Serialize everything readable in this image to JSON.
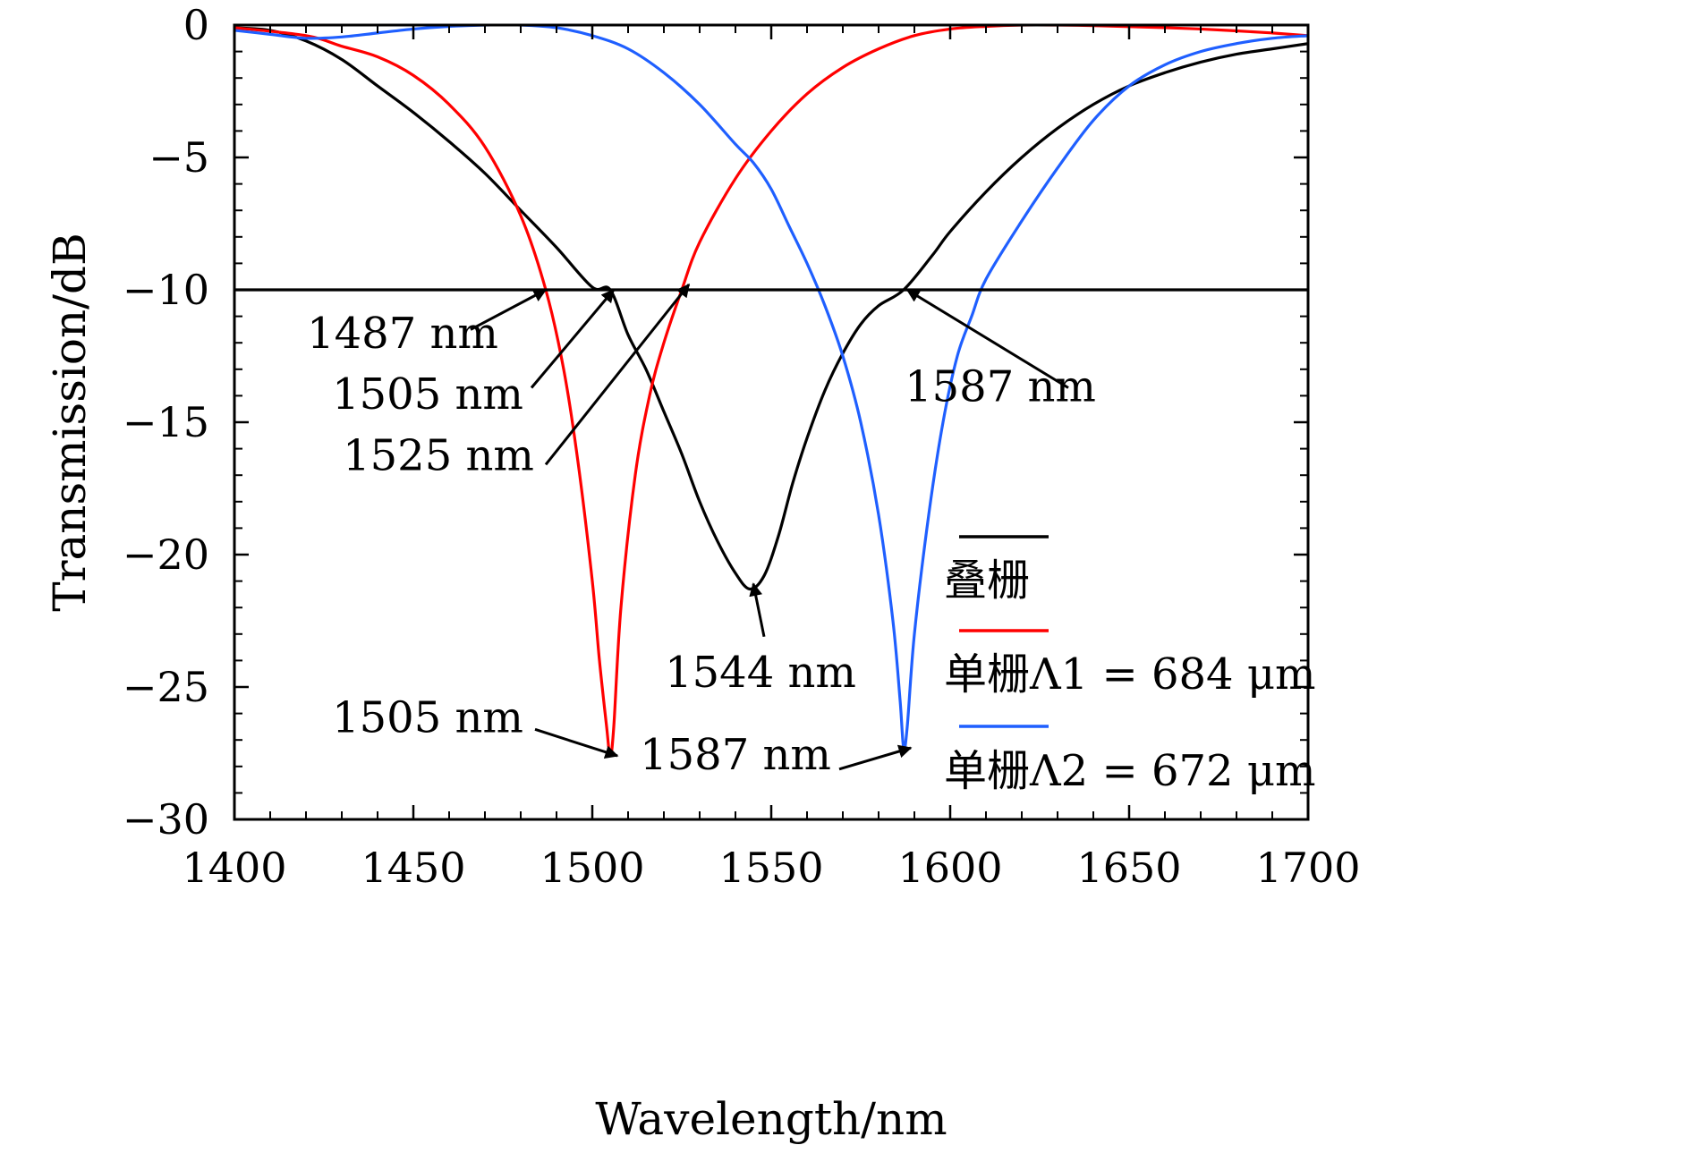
{
  "chart_data": {
    "type": "line",
    "xlabel": "Wavelength/nm",
    "ylabel": "Transmission/dB",
    "xlim": [
      1400,
      1700
    ],
    "ylim": [
      -30,
      0
    ],
    "xticks": [
      1400,
      1450,
      1500,
      1550,
      1600,
      1650,
      1700
    ],
    "yticks": [
      0,
      -5,
      -10,
      -15,
      -20,
      -25,
      -30
    ],
    "xtick_labels": [
      "1400",
      "1450",
      "1500",
      "1550",
      "1600",
      "1650",
      "1700"
    ],
    "ytick_labels": [
      "0",
      "−5",
      "−10",
      "−15",
      "−20",
      "−25",
      "−30"
    ],
    "grid": false,
    "legend_position": "bottom-right",
    "reference_line": {
      "y": -10
    },
    "series": [
      {
        "name": "叠栅",
        "color": "#000000",
        "x": [
          1400,
          1410,
          1420,
          1430,
          1440,
          1450,
          1460,
          1470,
          1480,
          1490,
          1500,
          1505,
          1510,
          1515,
          1520,
          1525,
          1530,
          1535,
          1540,
          1544,
          1548,
          1552,
          1556,
          1560,
          1565,
          1570,
          1575,
          1580,
          1587,
          1595,
          1600,
          1610,
          1620,
          1630,
          1640,
          1650,
          1660,
          1670,
          1680,
          1690,
          1700
        ],
        "y": [
          -0.1,
          -0.2,
          -0.6,
          -1.3,
          -2.3,
          -3.3,
          -4.4,
          -5.6,
          -7.0,
          -8.4,
          -9.9,
          -10.0,
          -11.7,
          -13.0,
          -14.6,
          -16.2,
          -18.0,
          -19.5,
          -20.7,
          -21.3,
          -20.8,
          -19.3,
          -17.3,
          -15.6,
          -13.8,
          -12.4,
          -11.3,
          -10.6,
          -10.0,
          -8.7,
          -7.8,
          -6.3,
          -5.0,
          -3.9,
          -3.0,
          -2.3,
          -1.8,
          -1.4,
          -1.1,
          -0.9,
          -0.7
        ]
      },
      {
        "name": "单栅Λ1 = 684 μm",
        "color": "#ff0000",
        "x": [
          1400,
          1420,
          1430,
          1440,
          1450,
          1460,
          1470,
          1480,
          1487,
          1492,
          1496,
          1500,
          1502,
          1504,
          1505,
          1506,
          1508,
          1512,
          1516,
          1520,
          1525,
          1530,
          1540,
          1550,
          1560,
          1570,
          1580,
          1590,
          1600,
          1610,
          1620,
          1630,
          1640,
          1650,
          1660,
          1670,
          1680,
          1690,
          1700
        ],
        "y": [
          -0.1,
          -0.4,
          -0.8,
          -1.2,
          -1.9,
          -3.0,
          -4.6,
          -7.2,
          -10.0,
          -13.0,
          -16.5,
          -21.0,
          -24.0,
          -26.5,
          -27.6,
          -26.5,
          -22.0,
          -17.0,
          -14.0,
          -12.0,
          -10.0,
          -8.2,
          -5.8,
          -4.0,
          -2.6,
          -1.6,
          -0.9,
          -0.4,
          -0.15,
          -0.05,
          0.0,
          0.0,
          -0.02,
          -0.06,
          -0.1,
          -0.15,
          -0.22,
          -0.3,
          -0.4
        ]
      },
      {
        "name": "单栅Λ2 = 672 μm",
        "color": "#1f5fff",
        "x": [
          1400,
          1410,
          1420,
          1430,
          1440,
          1450,
          1460,
          1470,
          1480,
          1490,
          1500,
          1510,
          1520,
          1530,
          1540,
          1545,
          1550,
          1555,
          1560,
          1565,
          1570,
          1575,
          1580,
          1584,
          1586,
          1587,
          1588,
          1590,
          1594,
          1598,
          1602,
          1606,
          1610,
          1620,
          1630,
          1640,
          1650,
          1660,
          1670,
          1680,
          1690,
          1700
        ],
        "y": [
          -0.2,
          -0.35,
          -0.5,
          -0.45,
          -0.3,
          -0.15,
          -0.05,
          0.0,
          0.0,
          -0.1,
          -0.4,
          -0.9,
          -1.8,
          -3.0,
          -4.5,
          -5.2,
          -6.2,
          -7.6,
          -9.0,
          -10.6,
          -12.5,
          -15.0,
          -18.5,
          -22.5,
          -25.5,
          -27.3,
          -26.5,
          -23.0,
          -18.5,
          -15.0,
          -12.5,
          -11.0,
          -9.6,
          -7.4,
          -5.4,
          -3.6,
          -2.3,
          -1.5,
          -1.0,
          -0.7,
          -0.5,
          -0.4
        ]
      }
    ],
    "annotations": [
      {
        "text": "1487 nm",
        "label_x": 1447,
        "label_y": -12.2,
        "arrow_from": [
          1466,
          -11.5
        ],
        "arrow_to": [
          1487,
          -10.0
        ]
      },
      {
        "text": "1505 nm",
        "label_x": 1454,
        "label_y": -14.5,
        "arrow_from": [
          1483,
          -13.7
        ],
        "arrow_to": [
          1506,
          -10.0
        ]
      },
      {
        "text": "1525 nm",
        "label_x": 1457,
        "label_y": -16.8,
        "arrow_from": [
          1487,
          -16.6
        ],
        "arrow_to": [
          1527,
          -9.8
        ]
      },
      {
        "text": "1587 nm",
        "label_x": 1614,
        "label_y": -14.2,
        "arrow_from": [
          1583,
          -13.7
        ],
        "arrow_to": [
          1588,
          -10.0
        ],
        "arrow_from_x": 1633
      },
      {
        "text": "1544 nm",
        "label_x": 1547,
        "label_y": -25.0,
        "arrow_from": [
          1548,
          -23.1
        ],
        "arrow_to": [
          1545,
          -21.1
        ]
      },
      {
        "text": "1505 nm",
        "label_x": 1454,
        "label_y": -26.7,
        "arrow_from": [
          1484,
          -26.6
        ],
        "arrow_to": [
          1507,
          -27.6
        ]
      },
      {
        "text": "1587 nm",
        "label_x": 1540,
        "label_y": -28.1,
        "arrow_from": [
          1569,
          -28.1
        ],
        "arrow_to": [
          1589,
          -27.3
        ]
      }
    ]
  }
}
